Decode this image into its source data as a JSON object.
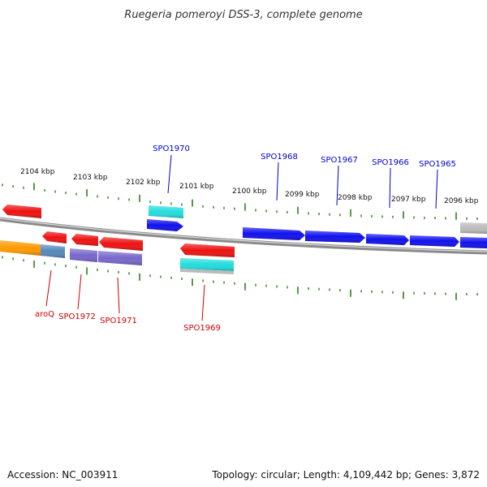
{
  "title": "Ruegeria pomeroyi DSS-3, complete genome",
  "accession": "Accession: NC_003911",
  "summary": "Topology: circular; Length: 4,109,442 bp; Genes: 3,872",
  "colors": {
    "backbone": "#8a8a8a",
    "tick": "#2e7d1e",
    "label_forward": "#0000cc",
    "label_reverse": "#cc0000",
    "red": "#ee1111",
    "blue": "#1010ee",
    "cyan": "#22dddd",
    "purple": "#7766cc",
    "steel": "#5588bb",
    "orange": "#ff9900",
    "gray": "#bbbbbb"
  },
  "ruler": {
    "labels": [
      "2104 kbp",
      "2103 kbp",
      "2102 kbp",
      "2101 kbp",
      "2100 kbp",
      "2099 kbp",
      "2098 kbp",
      "2097 kbp",
      "2096 kbp"
    ]
  },
  "genes_forward_labeled": [
    "SPO1970",
    "SPO1968",
    "SPO1967",
    "SPO1966",
    "SPO1965"
  ],
  "genes_reverse_labeled": [
    "aroQ",
    "SPO1972",
    "SPO1971",
    "SPO1969"
  ]
}
